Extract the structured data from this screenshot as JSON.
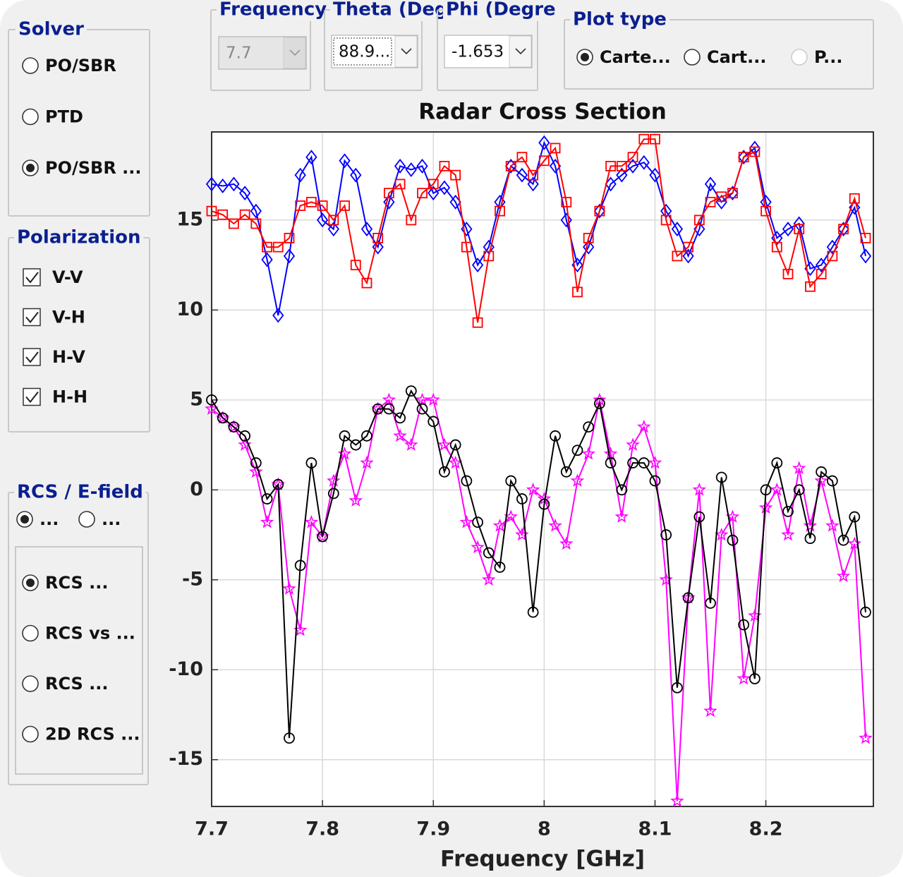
{
  "ui": {
    "solver": {
      "title": "Solver",
      "options": [
        "PO/SBR",
        "PTD",
        "PO/SBR ..."
      ],
      "selected": 2
    },
    "polarization": {
      "title": "Polarization"
    },
    "field": {
      "title": "RCS / E-field",
      "options": [
        "...",
        "..."
      ],
      "selected": 0,
      "plots": [
        "RCS ...",
        "RCS vs ...",
        "RCS ...",
        "2D RCS ..."
      ],
      "plot_selected": 0
    },
    "frequency": {
      "title": "Frequency",
      "value": "7.7",
      "enabled": false
    },
    "theta": {
      "title": "Theta (Deg",
      "value": "88.9..."
    },
    "phi": {
      "title": "Phi (Degre",
      "value": "-1.653"
    },
    "plot_type": {
      "title": "Plot type",
      "options": [
        "Carte...",
        "Cart...",
        "P..."
      ],
      "selected": 0,
      "disabled": [
        2
      ]
    }
  },
  "chart_data": {
    "type": "line",
    "title": "Radar Cross Section",
    "x_label": "Frequency [GHz]",
    "x": [
      7.7,
      7.71,
      7.72,
      7.73,
      7.74,
      7.75,
      7.76,
      7.77,
      7.78,
      7.79,
      7.8,
      7.81,
      7.82,
      7.83,
      7.84,
      7.85,
      7.86,
      7.87,
      7.88,
      7.89,
      7.9,
      7.91,
      7.92,
      7.93,
      7.94,
      7.95,
      7.96,
      7.97,
      7.98,
      7.99,
      8.0,
      8.01,
      8.02,
      8.03,
      8.04,
      8.05,
      8.06,
      8.07,
      8.08,
      8.09,
      8.1,
      8.11,
      8.12,
      8.13,
      8.14,
      8.15,
      8.16,
      8.17,
      8.18,
      8.19,
      8.2,
      8.21,
      8.22,
      8.23,
      8.24,
      8.25,
      8.26,
      8.27,
      8.28,
      8.29
    ],
    "series": [
      {
        "name": "V-V",
        "color": "#0000ff",
        "marker": "diamond",
        "values": [
          17,
          16.9,
          17,
          16.5,
          15.5,
          12.8,
          9.7,
          13,
          17.5,
          18.5,
          15,
          14.5,
          18.3,
          17.5,
          14.5,
          13.5,
          16,
          18,
          17.8,
          18,
          16.5,
          16.8,
          16,
          14.5,
          12.5,
          13.5,
          16,
          18,
          17.5,
          17,
          19.3,
          18,
          15,
          12.5,
          13.5,
          15.5,
          17,
          17.5,
          18,
          18.2,
          17.5,
          15.5,
          14.5,
          13,
          14.5,
          17,
          16,
          16.5,
          18.5,
          19,
          16,
          14,
          14.5,
          14.8,
          12.3,
          12.5,
          13.5,
          14.5,
          15.7,
          13
        ]
      },
      {
        "name": "V-H",
        "color": "#ff00ff",
        "marker": "star",
        "values": [
          4.5,
          4,
          3.5,
          2.5,
          1,
          -1.8,
          0.3,
          -5.5,
          -7.8,
          -1.8,
          -2.6,
          0.5,
          2,
          -0.6,
          1.5,
          4.5,
          5,
          3,
          2.5,
          5,
          5,
          2.5,
          1.5,
          -1.8,
          -3.2,
          -5,
          -2,
          -1.5,
          -2.5,
          0,
          -0.5,
          -2,
          -3,
          0.5,
          2,
          5,
          2,
          -1.5,
          2.5,
          3.5,
          1.5,
          -5,
          -17.3,
          -6,
          0,
          -12.3,
          -2.5,
          -1.5,
          -10.5,
          -7,
          -1,
          0,
          -2.5,
          1.2,
          -2,
          0.5,
          -2,
          -4.8,
          -3,
          -13.8
        ]
      },
      {
        "name": "H-V",
        "color": "#000000",
        "marker": "circle",
        "values": [
          5,
          4,
          3.5,
          3,
          1.5,
          -0.5,
          0.3,
          -13.8,
          -4.2,
          1.5,
          -2.6,
          -0.2,
          3,
          2.5,
          3,
          4.5,
          4.5,
          4,
          5.5,
          4.5,
          3.8,
          1,
          2.5,
          0.5,
          -1.8,
          -3.5,
          -4.3,
          0.5,
          -0.5,
          -6.8,
          -0.8,
          3,
          1,
          2.2,
          3.5,
          4.8,
          1.5,
          0,
          1.5,
          1.5,
          0.5,
          -2.5,
          -11,
          -6,
          -1.5,
          -6.3,
          0.7,
          -2.8,
          -7.5,
          -10.5,
          0,
          1.5,
          -1.2,
          0,
          -2.7,
          1,
          0.5,
          -2.8,
          -1.5,
          -6.8
        ]
      },
      {
        "name": "H-H",
        "color": "#ff0000",
        "marker": "square",
        "values": [
          15.5,
          15.3,
          14.8,
          15.3,
          14.8,
          13.5,
          13.5,
          14,
          15.8,
          16,
          15.8,
          15,
          15.8,
          12.5,
          11.5,
          14,
          16.5,
          17,
          15,
          16.5,
          17,
          18,
          17.5,
          13.5,
          9.3,
          13,
          15.5,
          18,
          18.5,
          17.5,
          18.3,
          19,
          16,
          11,
          14,
          15.5,
          18,
          18,
          18.5,
          19.5,
          19.5,
          15,
          13,
          13.5,
          15,
          16,
          16.3,
          16.5,
          18.5,
          18.8,
          15.5,
          13.5,
          12,
          14.5,
          11.3,
          12,
          13,
          14.5,
          16.2,
          14
        ]
      }
    ],
    "xlim": [
      7.7,
      8.297
    ],
    "ylim": [
      -17.6,
      19.9
    ],
    "xticks": [
      7.7,
      7.8,
      7.9,
      8,
      8.1,
      8.2
    ],
    "yticks": [
      -15,
      -10,
      -5,
      0,
      5,
      10,
      15
    ],
    "grid": true
  }
}
